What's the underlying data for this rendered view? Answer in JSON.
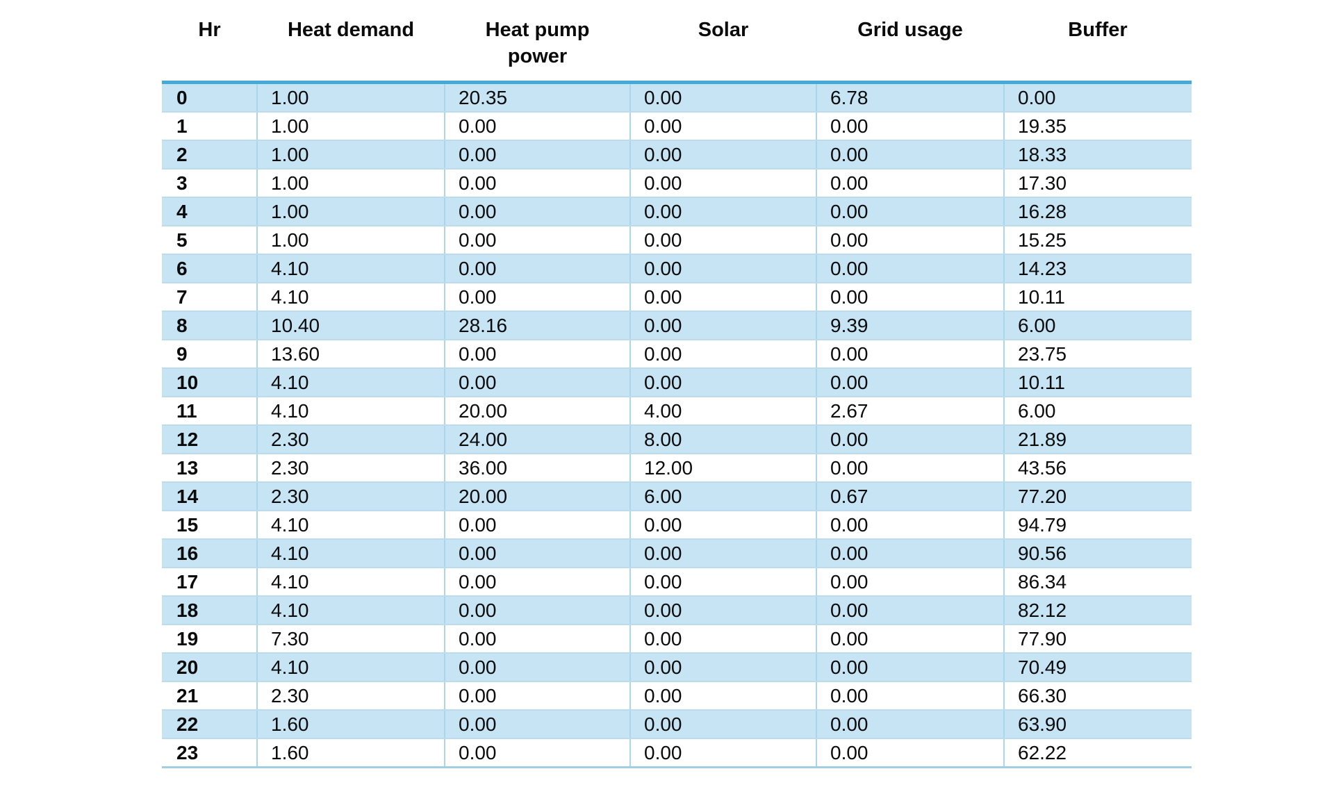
{
  "chart_data": {
    "type": "table",
    "columns": [
      "Hr",
      "Heat demand",
      "Heat pump\npower",
      "Solar",
      "Grid usage",
      "Buffer"
    ],
    "rows": [
      [
        "0",
        "1.00",
        "20.35",
        "0.00",
        "6.78",
        "0.00"
      ],
      [
        "1",
        "1.00",
        "0.00",
        "0.00",
        "0.00",
        "19.35"
      ],
      [
        "2",
        "1.00",
        "0.00",
        "0.00",
        "0.00",
        "18.33"
      ],
      [
        "3",
        "1.00",
        "0.00",
        "0.00",
        "0.00",
        "17.30"
      ],
      [
        "4",
        "1.00",
        "0.00",
        "0.00",
        "0.00",
        "16.28"
      ],
      [
        "5",
        "1.00",
        "0.00",
        "0.00",
        "0.00",
        "15.25"
      ],
      [
        "6",
        "4.10",
        "0.00",
        "0.00",
        "0.00",
        "14.23"
      ],
      [
        "7",
        "4.10",
        "0.00",
        "0.00",
        "0.00",
        "10.11"
      ],
      [
        "8",
        "10.40",
        "28.16",
        "0.00",
        "9.39",
        "6.00"
      ],
      [
        "9",
        "13.60",
        "0.00",
        "0.00",
        "0.00",
        "23.75"
      ],
      [
        "10",
        "4.10",
        "0.00",
        "0.00",
        "0.00",
        "10.11"
      ],
      [
        "11",
        "4.10",
        "20.00",
        "4.00",
        "2.67",
        "6.00"
      ],
      [
        "12",
        "2.30",
        "24.00",
        "8.00",
        "0.00",
        "21.89"
      ],
      [
        "13",
        "2.30",
        "36.00",
        "12.00",
        "0.00",
        "43.56"
      ],
      [
        "14",
        "2.30",
        "20.00",
        "6.00",
        "0.67",
        "77.20"
      ],
      [
        "15",
        "4.10",
        "0.00",
        "0.00",
        "0.00",
        "94.79"
      ],
      [
        "16",
        "4.10",
        "0.00",
        "0.00",
        "0.00",
        "90.56"
      ],
      [
        "17",
        "4.10",
        "0.00",
        "0.00",
        "0.00",
        "86.34"
      ],
      [
        "18",
        "4.10",
        "0.00",
        "0.00",
        "0.00",
        "82.12"
      ],
      [
        "19",
        "7.30",
        "0.00",
        "0.00",
        "0.00",
        "77.90"
      ],
      [
        "20",
        "4.10",
        "0.00",
        "0.00",
        "0.00",
        "70.49"
      ],
      [
        "21",
        "2.30",
        "0.00",
        "0.00",
        "0.00",
        "66.30"
      ],
      [
        "22",
        "1.60",
        "0.00",
        "0.00",
        "0.00",
        "63.90"
      ],
      [
        "23",
        "1.60",
        "0.00",
        "0.00",
        "0.00",
        "62.22"
      ]
    ],
    "layout": {
      "striping": "alternate rows highlighted starting with row Hr 0",
      "grid": "light blue column and row separators, thick blue rule under header",
      "legend": "none",
      "title": ""
    }
  },
  "colors": {
    "row_stripe": "#c6e4f4",
    "header_rule": "#44a8d8",
    "grid_line": "#abd5ea",
    "row_line": "#bcdcee",
    "bottom_rule": "#a3cde2",
    "text": "#0b0b0b",
    "background": "#ffffff"
  }
}
